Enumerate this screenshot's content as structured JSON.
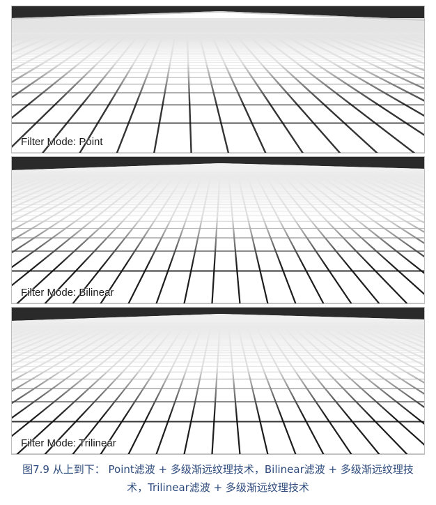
{
  "panels": [
    {
      "label": "Filter Mode: Point",
      "style": "point"
    },
    {
      "label": "Filter Mode: Bilinear",
      "style": "bilinear"
    },
    {
      "label": "Filter Mode: Trilinear",
      "style": "trilinear"
    }
  ],
  "caption": {
    "line1": "图7.9 从上到下： Point滤波 + 多级渐远纹理技术，Bilinear滤波 + 多级渐远纹理技",
    "line2": "术，Trilinear滤波 + 多级渐远纹理技术"
  },
  "colors": {
    "frame": "#2a2a2a",
    "grid_line": "#111111",
    "caption_text": "#2c4a7c"
  }
}
